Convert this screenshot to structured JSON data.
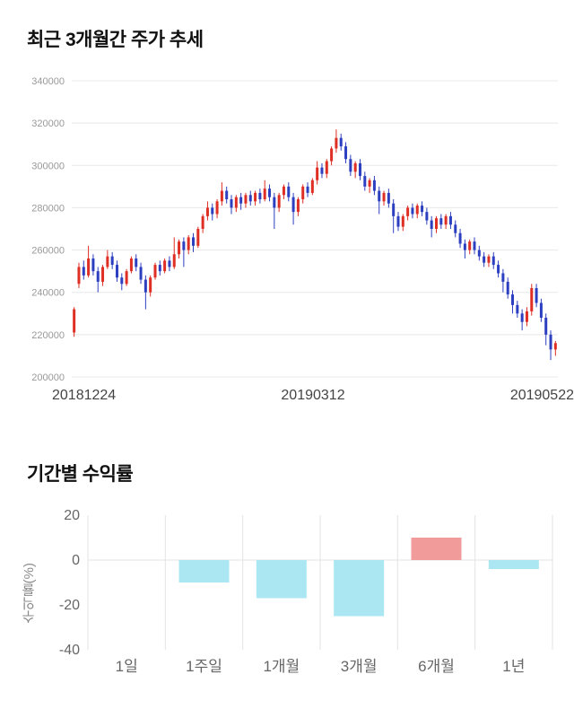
{
  "chart_data": [
    {
      "type": "candlestick",
      "title": "최근 3개월간 주가 추세",
      "ylim": [
        200000,
        340000
      ],
      "y_ticks": [
        200000,
        220000,
        240000,
        260000,
        280000,
        300000,
        320000,
        340000
      ],
      "x_labels": [
        "20181224",
        "20190312",
        "20190522"
      ],
      "ohlc_order": [
        "open",
        "high",
        "low",
        "close"
      ],
      "up_color": "#df2e23",
      "down_color": "#2d3fc1",
      "grid_color": "#e8e8e8",
      "candles": [
        [
          221000,
          233000,
          219000,
          232000
        ],
        [
          244000,
          254000,
          242000,
          252000
        ],
        [
          252000,
          255000,
          246000,
          248000
        ],
        [
          248000,
          262000,
          247000,
          256000
        ],
        [
          256000,
          258000,
          248000,
          250000
        ],
        [
          250000,
          252000,
          240000,
          245000
        ],
        [
          245000,
          253000,
          243000,
          252000
        ],
        [
          252000,
          260000,
          251000,
          257000
        ],
        [
          257000,
          259000,
          251000,
          253000
        ],
        [
          253000,
          255000,
          245000,
          247000
        ],
        [
          247000,
          249000,
          241000,
          244000
        ],
        [
          244000,
          251000,
          243000,
          250000
        ],
        [
          250000,
          257000,
          249000,
          256000
        ],
        [
          256000,
          258000,
          250000,
          252000
        ],
        [
          252000,
          254000,
          244000,
          246000
        ],
        [
          246000,
          248000,
          232000,
          240000
        ],
        [
          240000,
          248000,
          238000,
          247000
        ],
        [
          247000,
          254000,
          246000,
          253000
        ],
        [
          253000,
          255000,
          248000,
          250000
        ],
        [
          250000,
          256000,
          249000,
          255000
        ],
        [
          255000,
          257000,
          250000,
          252000
        ],
        [
          252000,
          266000,
          251000,
          258000
        ],
        [
          258000,
          265000,
          256000,
          264000
        ],
        [
          264000,
          266000,
          252000,
          260000
        ],
        [
          260000,
          267000,
          258000,
          266000
        ],
        [
          266000,
          268000,
          259000,
          262000
        ],
        [
          262000,
          271000,
          261000,
          270000
        ],
        [
          270000,
          277000,
          268000,
          276000
        ],
        [
          276000,
          283000,
          274000,
          280000
        ],
        [
          280000,
          282000,
          274000,
          277000
        ],
        [
          277000,
          284000,
          275000,
          283000
        ],
        [
          283000,
          292000,
          281000,
          288000
        ],
        [
          288000,
          290000,
          282000,
          284000
        ],
        [
          284000,
          286000,
          277000,
          280000
        ],
        [
          280000,
          286000,
          278000,
          285000
        ],
        [
          285000,
          287000,
          279000,
          282000
        ],
        [
          282000,
          287000,
          280000,
          286000
        ],
        [
          286000,
          288000,
          281000,
          283000
        ],
        [
          283000,
          288000,
          281000,
          287000
        ],
        [
          287000,
          289000,
          282000,
          284000
        ],
        [
          284000,
          293000,
          283000,
          289000
        ],
        [
          289000,
          291000,
          283000,
          285000
        ],
        [
          285000,
          287000,
          270000,
          280000
        ],
        [
          280000,
          287000,
          278000,
          286000
        ],
        [
          286000,
          291000,
          284000,
          290000
        ],
        [
          290000,
          292000,
          283000,
          285000
        ],
        [
          285000,
          287000,
          272000,
          278000
        ],
        [
          278000,
          285000,
          276000,
          284000
        ],
        [
          284000,
          291000,
          282000,
          290000
        ],
        [
          290000,
          292000,
          285000,
          287000
        ],
        [
          287000,
          294000,
          286000,
          293000
        ],
        [
          293000,
          302000,
          291000,
          299000
        ],
        [
          299000,
          301000,
          294000,
          296000
        ],
        [
          296000,
          303000,
          294000,
          302000
        ],
        [
          302000,
          309000,
          300000,
          308000
        ],
        [
          308000,
          317000,
          306000,
          313000
        ],
        [
          313000,
          315000,
          307000,
          309000
        ],
        [
          309000,
          311000,
          301000,
          303000
        ],
        [
          303000,
          305000,
          295000,
          297000
        ],
        [
          297000,
          302000,
          294000,
          301000
        ],
        [
          301000,
          303000,
          293000,
          295000
        ],
        [
          295000,
          297000,
          288000,
          290000
        ],
        [
          290000,
          294000,
          287000,
          293000
        ],
        [
          293000,
          295000,
          286000,
          288000
        ],
        [
          288000,
          290000,
          277000,
          283000
        ],
        [
          283000,
          288000,
          281000,
          287000
        ],
        [
          287000,
          289000,
          280000,
          282000
        ],
        [
          282000,
          284000,
          268000,
          276000
        ],
        [
          276000,
          278000,
          269000,
          271000
        ],
        [
          271000,
          277000,
          269000,
          276000
        ],
        [
          276000,
          281000,
          274000,
          280000
        ],
        [
          280000,
          282000,
          275000,
          277000
        ],
        [
          277000,
          282000,
          275000,
          281000
        ],
        [
          281000,
          283000,
          276000,
          278000
        ],
        [
          278000,
          280000,
          272000,
          274000
        ],
        [
          274000,
          276000,
          266000,
          270000
        ],
        [
          270000,
          276000,
          268000,
          275000
        ],
        [
          275000,
          277000,
          270000,
          272000
        ],
        [
          272000,
          277000,
          270000,
          276000
        ],
        [
          276000,
          278000,
          270000,
          272000
        ],
        [
          272000,
          274000,
          266000,
          268000
        ],
        [
          268000,
          270000,
          261000,
          263000
        ],
        [
          263000,
          265000,
          256000,
          260000
        ],
        [
          260000,
          265000,
          258000,
          264000
        ],
        [
          264000,
          266000,
          258000,
          260000
        ],
        [
          260000,
          262000,
          255000,
          257000
        ],
        [
          257000,
          259000,
          252000,
          254000
        ],
        [
          254000,
          258000,
          252000,
          257000
        ],
        [
          257000,
          259000,
          251000,
          253000
        ],
        [
          253000,
          255000,
          247000,
          249000
        ],
        [
          249000,
          251000,
          240000,
          245000
        ],
        [
          245000,
          247000,
          237000,
          239000
        ],
        [
          239000,
          241000,
          230000,
          234000
        ],
        [
          234000,
          236000,
          228000,
          230000
        ],
        [
          230000,
          232000,
          222000,
          226000
        ],
        [
          226000,
          233000,
          224000,
          231000
        ],
        [
          231000,
          244000,
          229000,
          242000
        ],
        [
          242000,
          244000,
          233000,
          235000
        ],
        [
          235000,
          237000,
          226000,
          228000
        ],
        [
          228000,
          230000,
          215000,
          220000
        ],
        [
          220000,
          222000,
          208000,
          213000
        ],
        [
          213000,
          217000,
          210000,
          216000
        ]
      ]
    },
    {
      "type": "bar",
      "title": "기간별 수익률",
      "ylabel": "수익률(%)",
      "categories": [
        "1일",
        "1주일",
        "1개월",
        "3개월",
        "6개월",
        "1년"
      ],
      "values": [
        0,
        -10,
        -17,
        -25,
        10,
        -4
      ],
      "ylim": [
        -40,
        20
      ],
      "y_ticks": [
        20,
        0,
        -20,
        -40
      ],
      "positive_color": "#f29b9b",
      "negative_color": "#abe7f2",
      "grid_color": "#e3e3e3",
      "legend": "none"
    }
  ]
}
